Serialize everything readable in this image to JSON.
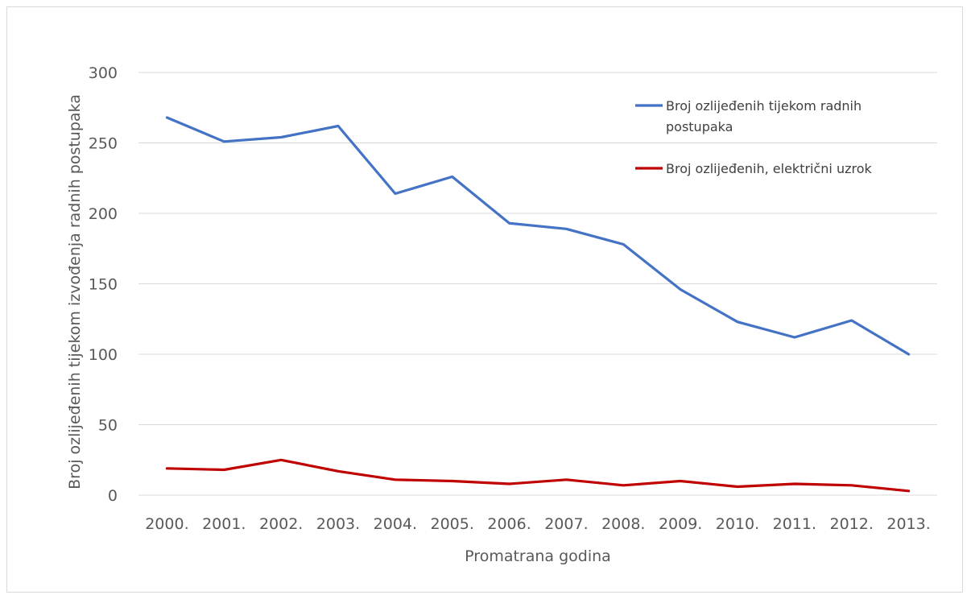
{
  "chart_data": {
    "type": "line",
    "title": "",
    "xlabel": "Promatrana godina",
    "ylabel": "Broj ozlijeđenih tijekom izvođenja radnih postupaka",
    "ylim": [
      0,
      300
    ],
    "yticks": [
      0,
      50,
      100,
      150,
      200,
      250,
      300
    ],
    "grid": true,
    "legend_position": "top-right",
    "categories": [
      "2000.",
      "2001.",
      "2002.",
      "2003.",
      "2004.",
      "2005.",
      "2006.",
      "2007.",
      "2008.",
      "2009.",
      "2010.",
      "2011.",
      "2012.",
      "2013."
    ],
    "series": [
      {
        "name": "Broj ozlijeđenih tijekom radnih postupaka",
        "legend_lines": [
          "Broj ozlijeđenih tijekom radnih",
          "postupaka"
        ],
        "color": "#4472c4",
        "values": [
          268,
          251,
          254,
          262,
          214,
          226,
          193,
          189,
          178,
          146,
          123,
          112,
          124,
          100
        ]
      },
      {
        "name": "Broj ozlijeđenih, električni uzrok",
        "legend_lines": [
          "Broj ozlijeđenih, električni uzrok"
        ],
        "color": "#c00000",
        "values": [
          19,
          18,
          25,
          17,
          11,
          10,
          8,
          11,
          7,
          10,
          6,
          8,
          7,
          3
        ]
      }
    ]
  }
}
